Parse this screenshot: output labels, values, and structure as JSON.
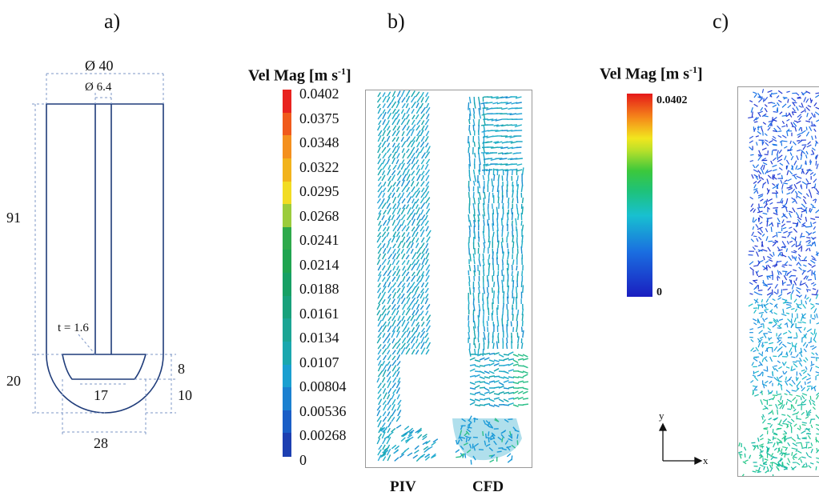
{
  "panels": {
    "a": "a)",
    "b": "b)",
    "c": "c)"
  },
  "schematic": {
    "diameter_outer": "Ø 40",
    "diameter_shaft": "Ø 6.4",
    "height_main": "91",
    "height_bottom": "20",
    "thickness": "t = 1.6",
    "blade_height": "8",
    "blade_offset": "10",
    "blade_width": "17",
    "bottom_width": "28"
  },
  "colorbar_b": {
    "title": "Vel Mag [m s",
    "title_sup": "-1",
    "title_close": "]",
    "ticks": [
      "0.0402",
      "0.0375",
      "0.0348",
      "0.0322",
      "0.0295",
      "0.0268",
      "0.0241",
      "0.0214",
      "0.0188",
      "0.0161",
      "0.0134",
      "0.0107",
      "0.00804",
      "0.00536",
      "0.00268",
      "0"
    ],
    "colors": [
      "#e8231f",
      "#f05a1c",
      "#f4901e",
      "#f2b31c",
      "#f2dc23",
      "#9bcc3c",
      "#2ea94b",
      "#1fa450",
      "#17a064",
      "#18a17b",
      "#1ba594",
      "#1aa7ae",
      "#1a9fd0",
      "#1b80d0",
      "#1a5ec6",
      "#1d3fb1"
    ]
  },
  "labels_b": {
    "piv": "PIV",
    "cfd": "CFD"
  },
  "colorbar_c": {
    "title": "Vel Mag [m s",
    "title_sup": "-1",
    "title_close": "]",
    "max": "0.0402",
    "min": "0"
  },
  "axes_c": {
    "y": "y",
    "x": "x"
  }
}
